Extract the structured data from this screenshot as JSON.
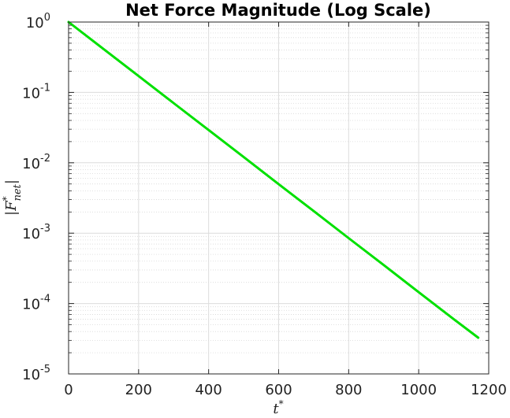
{
  "chart_data": {
    "type": "line",
    "title": "Net Force Magnitude (Log Scale)",
    "xlabel": "t*",
    "ylabel": "|F*net|",
    "xlim": [
      0,
      1200
    ],
    "ylim": [
      1e-05,
      1
    ],
    "y_scale": "log",
    "grid": true,
    "minor_grid": true,
    "x_ticks": [
      {
        "value": 0,
        "label": "0"
      },
      {
        "value": 200,
        "label": "200"
      },
      {
        "value": 400,
        "label": "400"
      },
      {
        "value": 600,
        "label": "600"
      },
      {
        "value": 800,
        "label": "800"
      },
      {
        "value": 1000,
        "label": "1000"
      },
      {
        "value": 1200,
        "label": "1200"
      }
    ],
    "y_ticks": [
      {
        "value": 1,
        "base": "10",
        "exp": "0"
      },
      {
        "value": 0.1,
        "base": "10",
        "exp": "-1"
      },
      {
        "value": 0.01,
        "base": "10",
        "exp": "-2"
      },
      {
        "value": 0.001,
        "base": "10",
        "exp": "-3"
      },
      {
        "value": 0.0001,
        "base": "10",
        "exp": "-4"
      },
      {
        "value": 1e-05,
        "base": "10",
        "exp": "-5"
      }
    ],
    "series": [
      {
        "color": "#00e000",
        "x": [
          0,
          100,
          200,
          300,
          400,
          500,
          600,
          700,
          800,
          900,
          1000,
          1100,
          1170
        ],
        "y": [
          1.0,
          0.413,
          0.171,
          0.0705,
          0.0292,
          0.0121,
          0.00498,
          0.00206,
          0.00085,
          0.000352,
          0.000145,
          6e-05,
          3.27e-05
        ]
      }
    ]
  }
}
